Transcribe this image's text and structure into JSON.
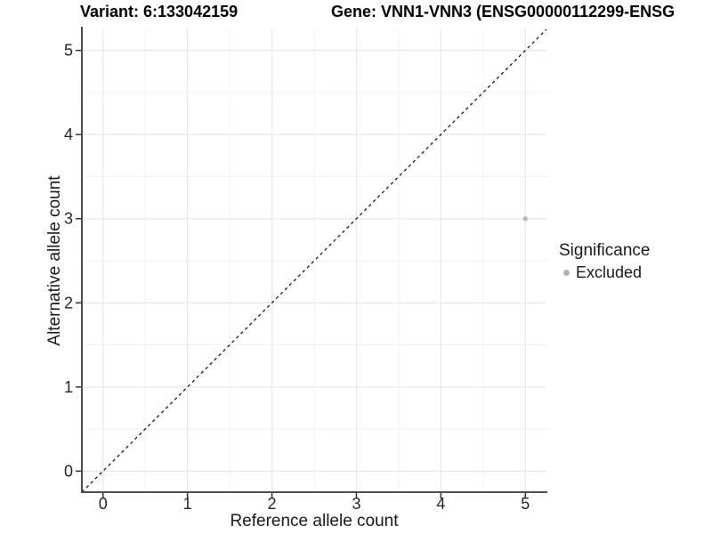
{
  "titles": {
    "left": "Variant: 6:133042159",
    "right": "Gene: VNN1-VNN3 (ENSG00000112299-ENSG"
  },
  "chart_data": {
    "type": "scatter",
    "title_left": "Variant: 6:133042159",
    "title_right": "Gene: VNN1-VNN3 (ENSG00000112299-ENSG",
    "xlabel": "Reference allele count",
    "ylabel": "Alternative allele count",
    "xlim": [
      -0.25,
      5.25
    ],
    "ylim": [
      -0.25,
      5.25
    ],
    "xticks": [
      0,
      1,
      2,
      3,
      4,
      5
    ],
    "yticks": [
      0,
      1,
      2,
      3,
      4,
      5
    ],
    "minor_xticks": [
      0.5,
      1.5,
      2.5,
      3.5,
      4.5
    ],
    "minor_yticks": [
      0.5,
      1.5,
      2.5,
      3.5,
      4.5
    ],
    "grid": true,
    "points": [
      {
        "x": 5,
        "y": 3,
        "series": "Excluded"
      }
    ],
    "reference_line": {
      "type": "identity",
      "style": "dashed",
      "from": [
        -0.25,
        -0.25
      ],
      "to": [
        5.25,
        5.25
      ]
    },
    "legend": {
      "position": "right",
      "title": "Significance",
      "items": [
        {
          "label": "Excluded",
          "color": "#b3b3b3"
        }
      ]
    }
  },
  "colors": {
    "point": "#b8b8b8",
    "legend_key": "#b3b3b3",
    "grid_major": "#e8e8e8",
    "grid_minor": "#f2f2f2",
    "axis_line": "#4d4d4d",
    "tick_mark": "#333333",
    "tick_label": "#262626",
    "dashed_line": "#1a1a1a",
    "background": "#ffffff"
  }
}
